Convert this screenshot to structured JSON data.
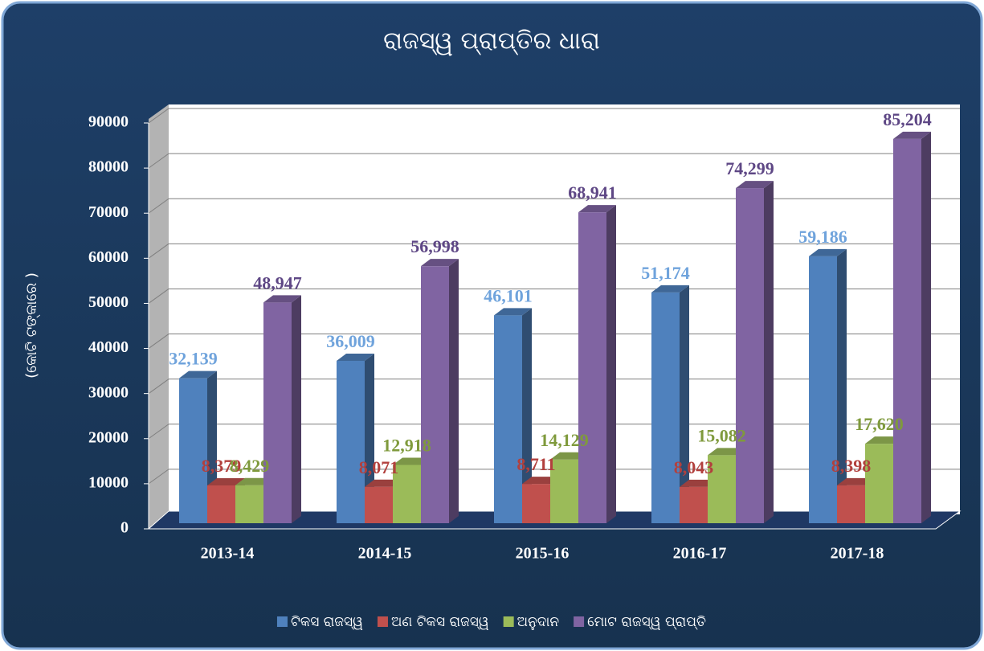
{
  "chart_data": {
    "type": "bar3d",
    "title": "ରାଜସ୍ୱ ପ୍ରାପ୍ତିର ଧାରା",
    "y_label": "(କୋଟି ଟଙ୍କାରେ )",
    "categories": [
      "2013-14",
      "2014-15",
      "2015-16",
      "2016-17",
      "2017-18"
    ],
    "series": [
      {
        "name": "ଟିକସ ରାଜସ୍ୱ",
        "color": "#4f81bd",
        "label_color": "#6fa3dc",
        "values": [
          32139,
          36009,
          46101,
          51174,
          59186
        ],
        "value_labels": [
          "32,139",
          "36,009",
          "46,101",
          "51,174",
          "59,186"
        ]
      },
      {
        "name": "ଅଣ ଟିକସ ରାଜସ୍ୱ",
        "color": "#c0504d",
        "label_color": "#b2403d",
        "values": [
          8379,
          8071,
          8711,
          8043,
          8398
        ],
        "value_labels": [
          "8,379",
          "8,071",
          "8,711",
          "8,043",
          "8,398"
        ]
      },
      {
        "name": "ଅନୁଦାନ",
        "color": "#9bbb59",
        "label_color": "#7f9a3c",
        "values": [
          8429,
          12918,
          14129,
          15082,
          17620
        ],
        "value_labels": [
          "8,429",
          "12,918",
          "14,129",
          "15,082",
          "17,620"
        ]
      },
      {
        "name": "ମୋଟ ରାଜସ୍ୱ ପ୍ରାପ୍ତି",
        "color": "#8064a2",
        "label_color": "#5e4785",
        "values": [
          48947,
          56998,
          68941,
          74299,
          85204
        ],
        "value_labels": [
          "48,947",
          "56,998",
          "68,941",
          "74,299",
          "85,204"
        ]
      }
    ],
    "ylim": [
      0,
      90000
    ],
    "yticks": [
      0,
      10000,
      20000,
      30000,
      40000,
      50000,
      60000,
      70000,
      80000,
      90000
    ],
    "grid": true,
    "legend": "bottom"
  }
}
